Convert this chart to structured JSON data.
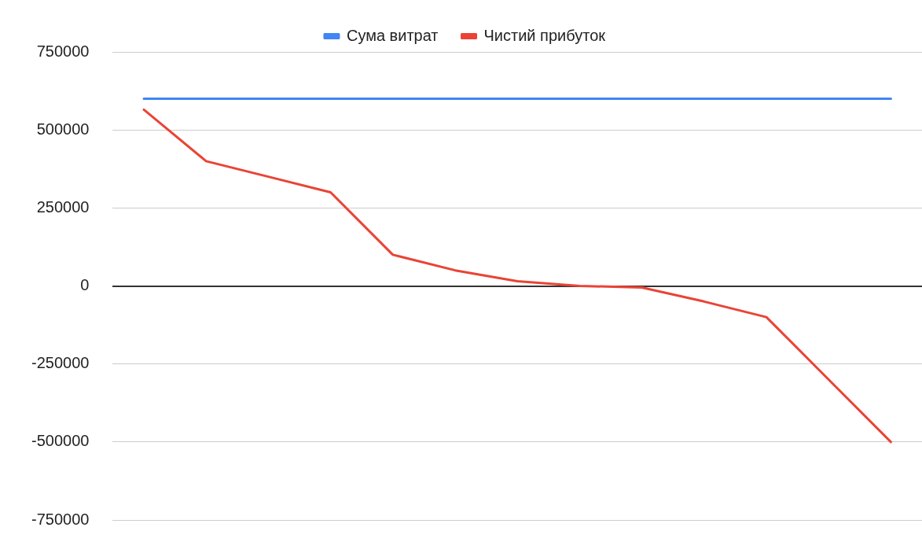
{
  "chart_data": {
    "type": "line",
    "categories": [
      null,
      null,
      null,
      null,
      null,
      null,
      null,
      null,
      null,
      null,
      null,
      null,
      null
    ],
    "series": [
      {
        "name": "Сума витрат",
        "color": "#4285f4",
        "values": [
          600000,
          600000,
          600000,
          600000,
          600000,
          600000,
          600000,
          600000,
          600000,
          600000,
          600000,
          600000,
          600000
        ]
      },
      {
        "name": "Чистий прибуток",
        "color": "#ea4335",
        "values": [
          565000,
          400000,
          350000,
          300000,
          100000,
          50000,
          15000,
          0,
          -5000,
          -50000,
          -100000,
          -300000,
          -500000
        ]
      }
    ],
    "ylim": [
      -750000,
      750000
    ],
    "yticks": [
      -750000,
      -500000,
      -250000,
      0,
      250000,
      500000,
      750000
    ],
    "grid": "y",
    "legend": "top",
    "tick_labels": "y",
    "marker": "none",
    "line_style": "solid"
  }
}
